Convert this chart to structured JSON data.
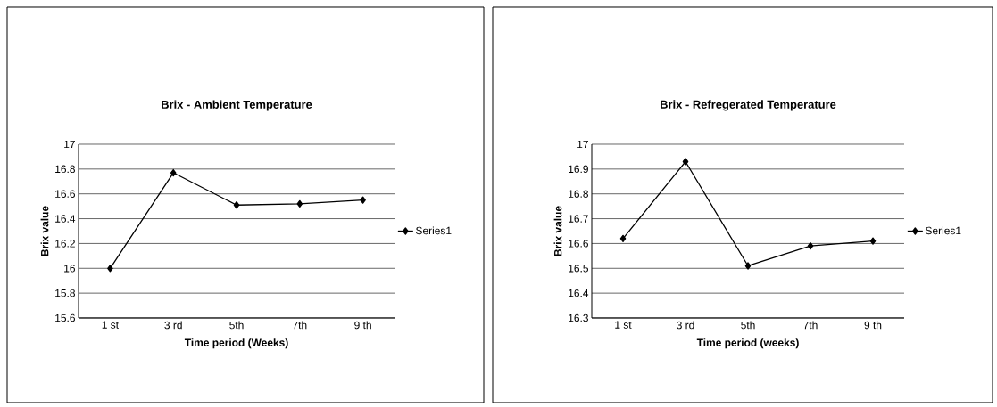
{
  "chart_data": [
    {
      "type": "line",
      "title": "Brix - Ambient Temperature",
      "xlabel": "Time period (Weeks)",
      "ylabel": "Brix value",
      "categories": [
        "1 st",
        "3 rd",
        "5th",
        "7th",
        "9 th"
      ],
      "series": [
        {
          "name": "Series1",
          "color": "#000000",
          "values": [
            16.0,
            16.77,
            16.51,
            16.52,
            16.55
          ]
        }
      ],
      "ylim": [
        15.6,
        17
      ],
      "yticks": [
        15.6,
        15.8,
        16,
        16.2,
        16.4,
        16.6,
        16.8,
        17
      ],
      "grid": "y",
      "legend": "right",
      "marker": "diamond",
      "line_style": "solid"
    },
    {
      "type": "line",
      "title": "Brix - Refregerated Temperature",
      "xlabel": "Time period (weeks)",
      "ylabel": "Brix value",
      "categories": [
        "1 st",
        "3 rd",
        "5th",
        "7th",
        "9 th"
      ],
      "series": [
        {
          "name": "Series1",
          "color": "#000000",
          "values": [
            16.62,
            16.93,
            16.51,
            16.59,
            16.61
          ]
        }
      ],
      "ylim": [
        16.3,
        17
      ],
      "yticks": [
        16.3,
        16.4,
        16.5,
        16.6,
        16.7,
        16.8,
        16.9,
        17
      ],
      "grid": "y",
      "legend": "right",
      "marker": "diamond",
      "line_style": "solid"
    }
  ]
}
